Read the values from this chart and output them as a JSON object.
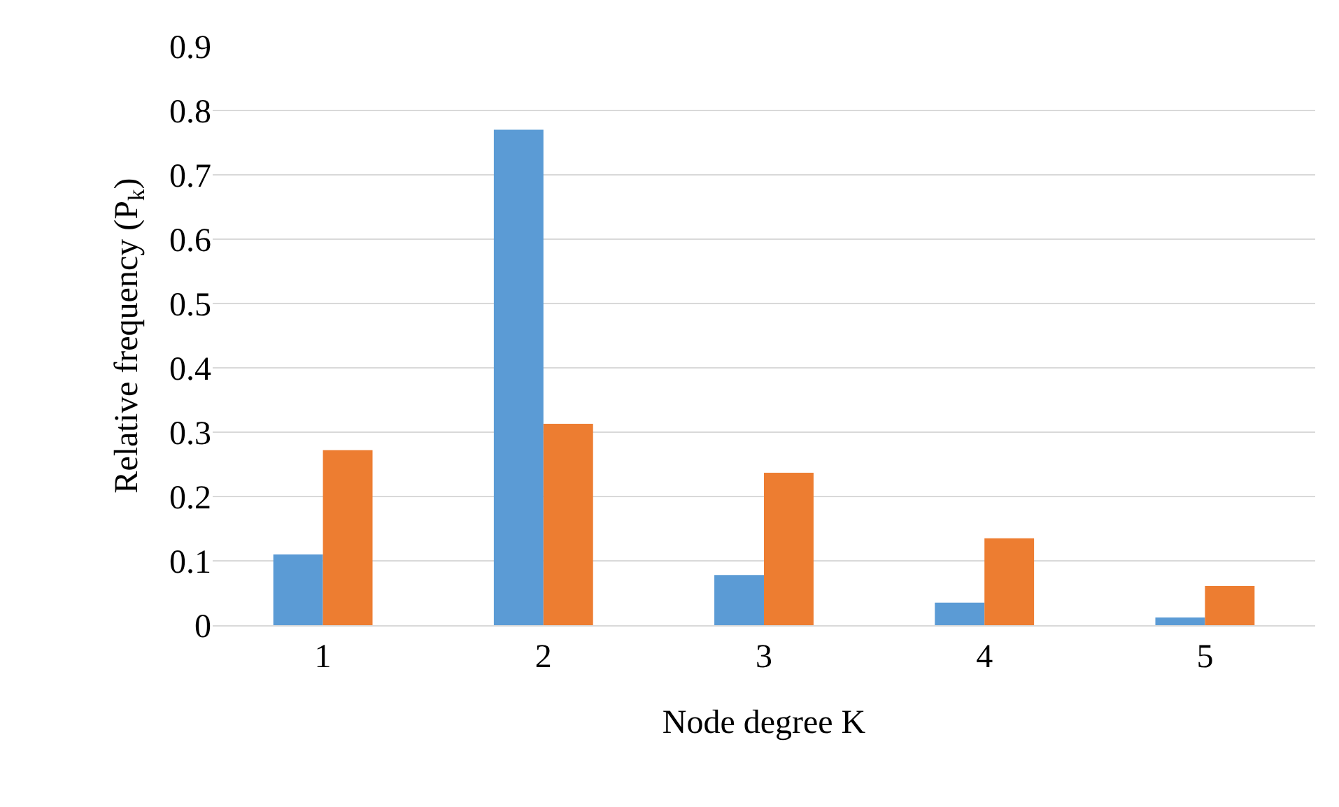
{
  "chart_data": {
    "type": "bar",
    "xlabel": "Node degree K",
    "ylabel": "Relative frequency (P$_{k}$)",
    "categories": [
      "1",
      "2",
      "3",
      "4",
      "5"
    ],
    "series": [
      {
        "color": "#5b9bd5",
        "values": [
          0.11,
          0.77,
          0.078,
          0.035,
          0.012
        ]
      },
      {
        "color": "#ed7d31",
        "values": [
          0.272,
          0.313,
          0.237,
          0.135,
          0.061
        ]
      }
    ],
    "ylim": [
      0,
      0.9
    ],
    "yticks": [
      0,
      0.1,
      0.2,
      0.3,
      0.4,
      0.5,
      0.6,
      0.7,
      0.8,
      0.9
    ],
    "grid": "y"
  }
}
